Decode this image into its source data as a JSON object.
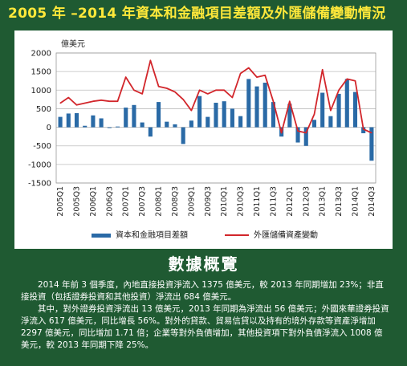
{
  "title": "2005 年 –2014 年資本和金融項目差額及外匯儲備變動情況",
  "summary": {
    "heading": "數據概覽",
    "paragraphs": [
      "2014 年前 3 個季度，內地直接投資淨流入 1375 億美元，較 2013 年同期增加 23%；非直接投資（包括證券投資和其他投資）淨流出 684 億美元。",
      "其中，對外證券投資淨流出 13 億美元，2013 年同期為淨流出 56 億美元；外國來華證券投資淨流入 617 億美元，同比增長 56%。對外的貸款、貿易信貸以及持有的境外存款等資產淨增加 2297 億美元，同比增加 1.71 倍；企業等對外負債增加，其他投資項下對外負債淨流入 1008 億美元，較 2013 年同期下降 25%。"
    ]
  },
  "colors": {
    "frame": "#1f5a32",
    "title": "#ffe83a",
    "bar": "#2a6aa6",
    "line": "#d2262b",
    "grid": "#bdbdbd"
  },
  "chart_data": {
    "type": "bar",
    "unit_label": "億美元",
    "ylim": [
      -1500,
      2000
    ],
    "yticks": [
      2000,
      1500,
      1000,
      500,
      0,
      -500,
      -1000,
      -1500
    ],
    "grid": true,
    "legend_position": "bottom",
    "x": [
      "2005Q1",
      "2005Q2",
      "2005Q3",
      "2005Q4",
      "2006Q1",
      "2006Q2",
      "2006Q3",
      "2006Q4",
      "2007Q1",
      "2007Q2",
      "2007Q3",
      "2007Q4",
      "2008Q1",
      "2008Q2",
      "2008Q3",
      "2008Q4",
      "2009Q1",
      "2009Q2",
      "2009Q3",
      "2009Q4",
      "2010Q1",
      "2010Q2",
      "2010Q3",
      "2010Q4",
      "2011Q1",
      "2011Q2",
      "2011Q3",
      "2011Q4",
      "2012Q1",
      "2012Q2",
      "2012Q3",
      "2012Q4",
      "2013Q1",
      "2013Q2",
      "2013Q3",
      "2013Q4",
      "2014Q1",
      "2014Q2",
      "2014Q3"
    ],
    "x_tick_labels": [
      "2005Q1",
      "2005Q3",
      "2006Q1",
      "2006Q3",
      "2007Q1",
      "2007Q3",
      "2008Q1",
      "2008Q3",
      "2009Q1",
      "2009Q3",
      "2010Q1",
      "2010Q3",
      "2011Q1",
      "2011Q3",
      "2012Q1",
      "2012Q3",
      "2013Q1",
      "2013Q3",
      "2014Q1",
      "2014Q3"
    ],
    "series": [
      {
        "name": "資本和金融項目差額",
        "kind": "bar",
        "values": [
          280,
          370,
          380,
          40,
          320,
          240,
          -20,
          20,
          530,
          600,
          130,
          -250,
          680,
          150,
          80,
          -450,
          180,
          840,
          280,
          660,
          700,
          500,
          300,
          1300,
          1100,
          1200,
          680,
          -250,
          630,
          -410,
          -500,
          200,
          930,
          300,
          900,
          1300,
          950,
          -160,
          -900
        ]
      },
      {
        "name": "外匯儲備資產變動",
        "kind": "line",
        "values": [
          650,
          800,
          600,
          650,
          700,
          730,
          700,
          700,
          1350,
          1000,
          900,
          1800,
          1100,
          1050,
          950,
          750,
          450,
          1000,
          900,
          1000,
          1000,
          800,
          1450,
          1600,
          1350,
          1400,
          700,
          -150,
          700,
          -100,
          -150,
          350,
          1550,
          450,
          1000,
          1300,
          1250,
          -50,
          -150
        ]
      }
    ]
  }
}
